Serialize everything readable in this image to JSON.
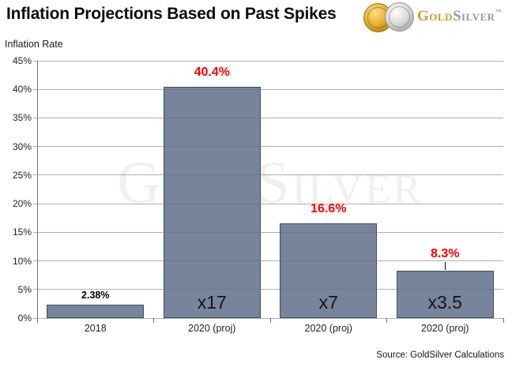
{
  "header": {
    "title": "Inflation Projections Based on Past Spikes",
    "logo": {
      "gold": "Gold",
      "silver": "Silver",
      "trademark": "™"
    }
  },
  "chart_data": {
    "type": "bar",
    "title": "Inflation Projections Based on Past Spikes",
    "axis_label": "Inflation Rate",
    "categories": [
      "2018",
      "2020 (proj)",
      "2020 (proj)",
      "2020 (proj)"
    ],
    "values": [
      2.38,
      40.4,
      16.6,
      8.3
    ],
    "value_labels": [
      "2.38%",
      "40.4%",
      "16.6%",
      "8.3%"
    ],
    "value_label_styles": [
      "small-black",
      "large-red",
      "large-red",
      "large-red"
    ],
    "value_label_leader": [
      false,
      false,
      false,
      true
    ],
    "bar_annotations": [
      "",
      "x17",
      "x7",
      "x3.5"
    ],
    "ylim": [
      0,
      45
    ],
    "ytick_step": 5,
    "ytick_labels": [
      "0%",
      "5%",
      "10%",
      "15%",
      "20%",
      "25%",
      "30%",
      "35%",
      "40%",
      "45%"
    ],
    "grid": true,
    "legend": false,
    "watermark": "GoldSilver",
    "source": "Source: GoldSilver Calculations",
    "colors": {
      "bar_fill": "#76859C",
      "bar_border": "#3F4E66",
      "red_label": "#FF0000",
      "black_label": "#000000",
      "gold_text": "#CF9B2D",
      "silver_text": "#97999B"
    }
  }
}
